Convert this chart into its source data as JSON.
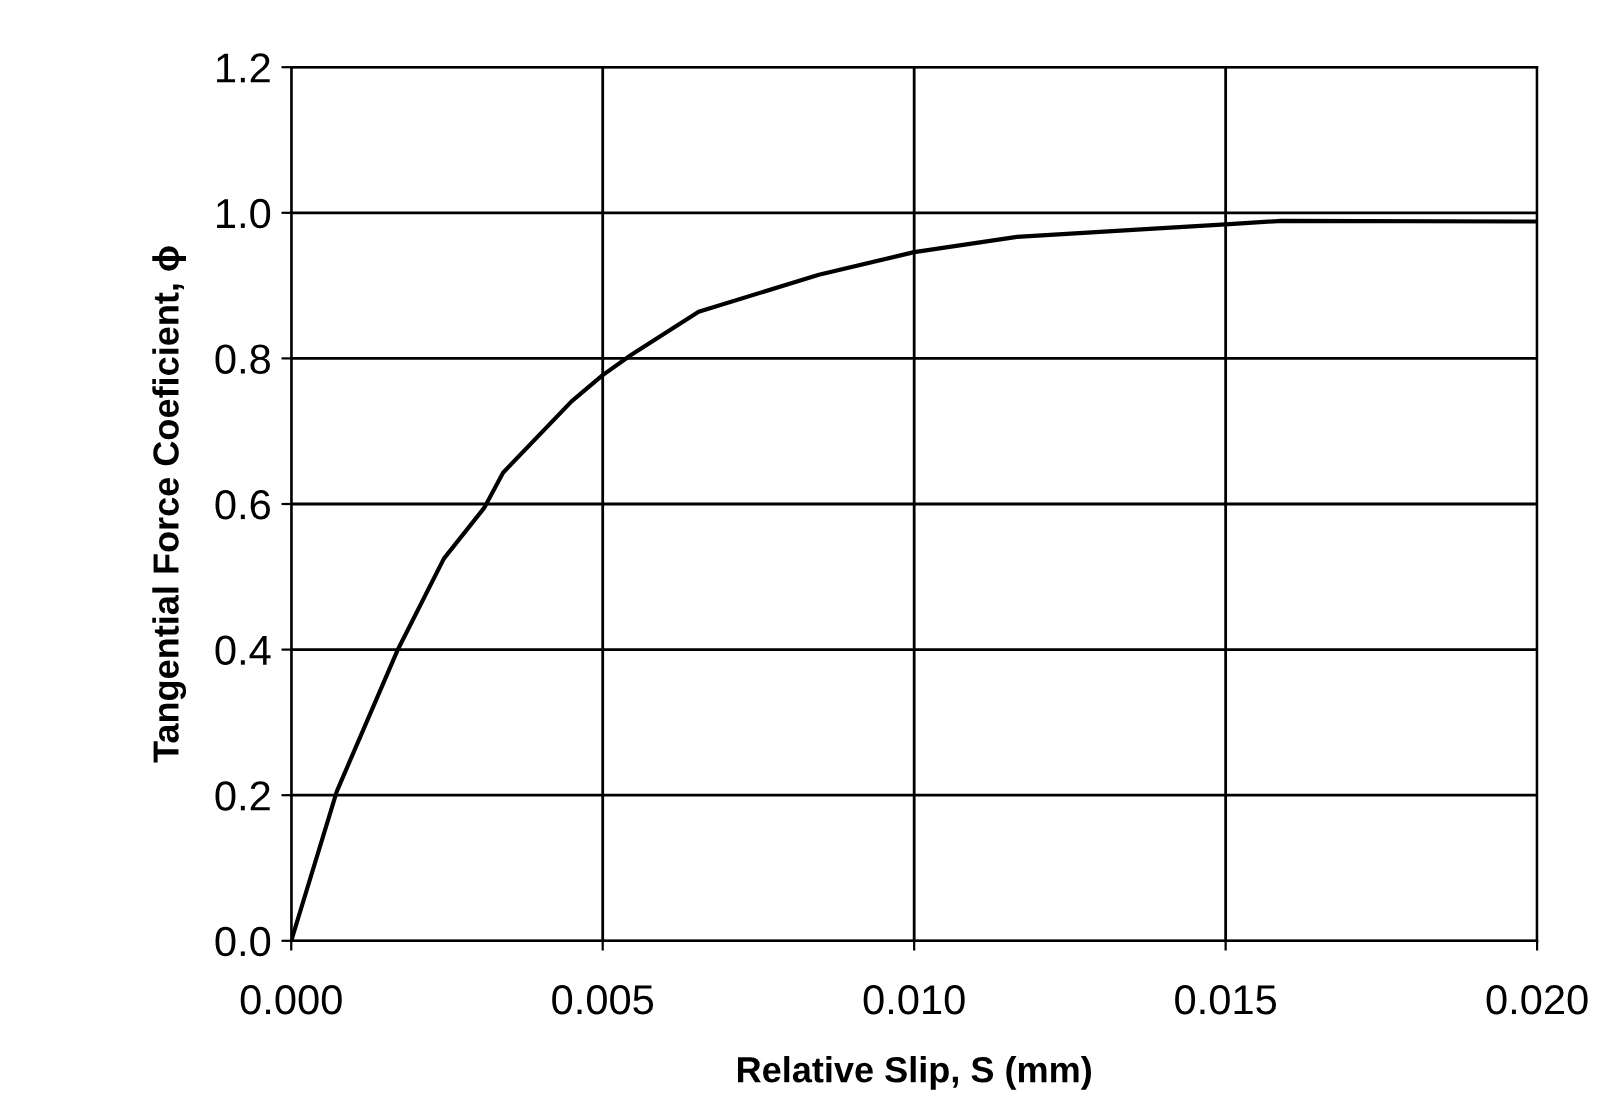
{
  "chart_data": {
    "type": "line",
    "xlabel": "Relative Slip, S (mm)",
    "ylabel": "Tangential Force Coeficient, ϕ",
    "x": [
      0,
      0.00073,
      0.0017,
      0.00245,
      0.0031,
      0.0034,
      0.0045,
      0.005,
      0.00546,
      0.00654,
      0.00847,
      0.01,
      0.01165,
      0.01378,
      0.015,
      0.0159,
      0.02
    ],
    "series": [
      {
        "color": "#000000",
        "values": [
          0,
          0.205,
          0.398,
          0.525,
          0.595,
          0.643,
          0.741,
          0.777,
          0.805,
          0.864,
          0.915,
          0.946,
          0.967,
          0.978,
          0.984,
          0.989,
          0.988
        ]
      }
    ],
    "xlim": [
      0,
      0.02
    ],
    "ylim": [
      0,
      1.2
    ],
    "xticks": [
      {
        "value": 0,
        "label": "0.000"
      },
      0.005,
      {
        "value": 0.01,
        "label": "0.010"
      },
      0.015,
      {
        "value": 0.02,
        "label": "0.020"
      }
    ],
    "yticks": [
      {
        "value": 0,
        "label": "0.0"
      },
      0.2,
      0.4,
      0.6,
      0.8,
      {
        "value": 1,
        "label": "1.0"
      },
      1.2
    ],
    "grid": true,
    "marker": "none",
    "line_style": "solid"
  }
}
